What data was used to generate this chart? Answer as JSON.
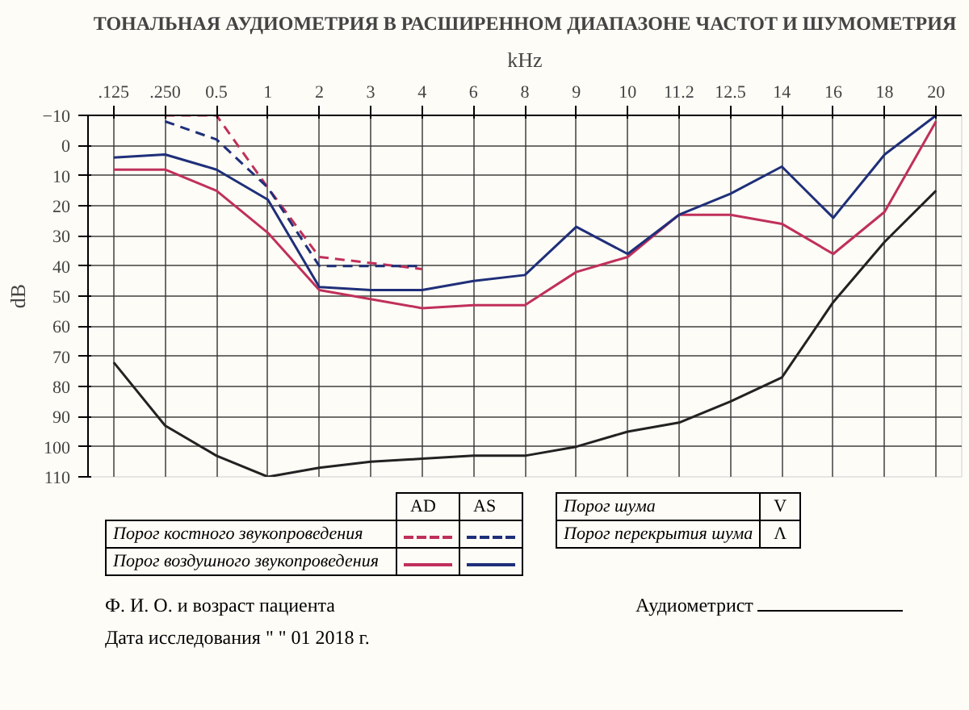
{
  "chart_data": {
    "type": "line",
    "title": "ТОНАЛЬНАЯ АУДИОМЕТРИЯ В РАСШИРЕННОМ ДИАПАЗОНЕ ЧАСТОТ И ШУМОМЕТРИЯ",
    "xlabel": "kHz",
    "ylabel": "dB",
    "categories": [
      ".125",
      ".250",
      "0.5",
      "1",
      "2",
      "3",
      "4",
      "6",
      "8",
      "9",
      "10",
      "11.2",
      "12.5",
      "14",
      "16",
      "18",
      "20"
    ],
    "series": [
      {
        "color": "#c0305a",
        "line_style": "solid",
        "values": [
          8,
          8,
          15,
          29,
          48,
          51,
          54,
          53,
          53,
          42,
          37,
          23,
          23,
          26,
          36,
          22,
          -8
        ]
      },
      {
        "color": "#1f2f7a",
        "line_style": "solid",
        "values": [
          4,
          3,
          8,
          18,
          47,
          48,
          48,
          45,
          43,
          27,
          36,
          23,
          16,
          7,
          24,
          3,
          -10
        ]
      },
      {
        "color": "#c0305a",
        "line_style": "dashed",
        "values": [
          null,
          -10,
          -10,
          14,
          37,
          39,
          41,
          null,
          null,
          null,
          null,
          null,
          null,
          null,
          null,
          null,
          null
        ]
      },
      {
        "color": "#1f2f7a",
        "line_style": "dashed",
        "values": [
          null,
          -8,
          -2,
          14,
          40,
          40,
          40,
          null,
          null,
          null,
          null,
          null,
          null,
          null,
          null,
          null,
          null
        ]
      },
      {
        "color": "#222222",
        "line_style": "solid",
        "values": [
          72,
          93,
          103,
          110,
          107,
          105,
          104,
          103,
          103,
          100,
          95,
          92,
          85,
          77,
          52,
          32,
          15
        ]
      }
    ],
    "ylim": [
      110,
      -10
    ],
    "yticks": [
      -10,
      0,
      10,
      20,
      30,
      40,
      50,
      60,
      70,
      80,
      90,
      100,
      110
    ],
    "grid": true,
    "marker": "none",
    "annotations": [
      "AD",
      "AS",
      "Порог костного звукопроведения",
      "Порог воздушного звукопроведения",
      "Порог шума",
      "V",
      "Порог перекрытия шума",
      "Λ",
      "Ф. И. О. и возраст пациента",
      "Аудиометрист",
      "Дата исследования \"     \"  01  2018 г."
    ]
  }
}
